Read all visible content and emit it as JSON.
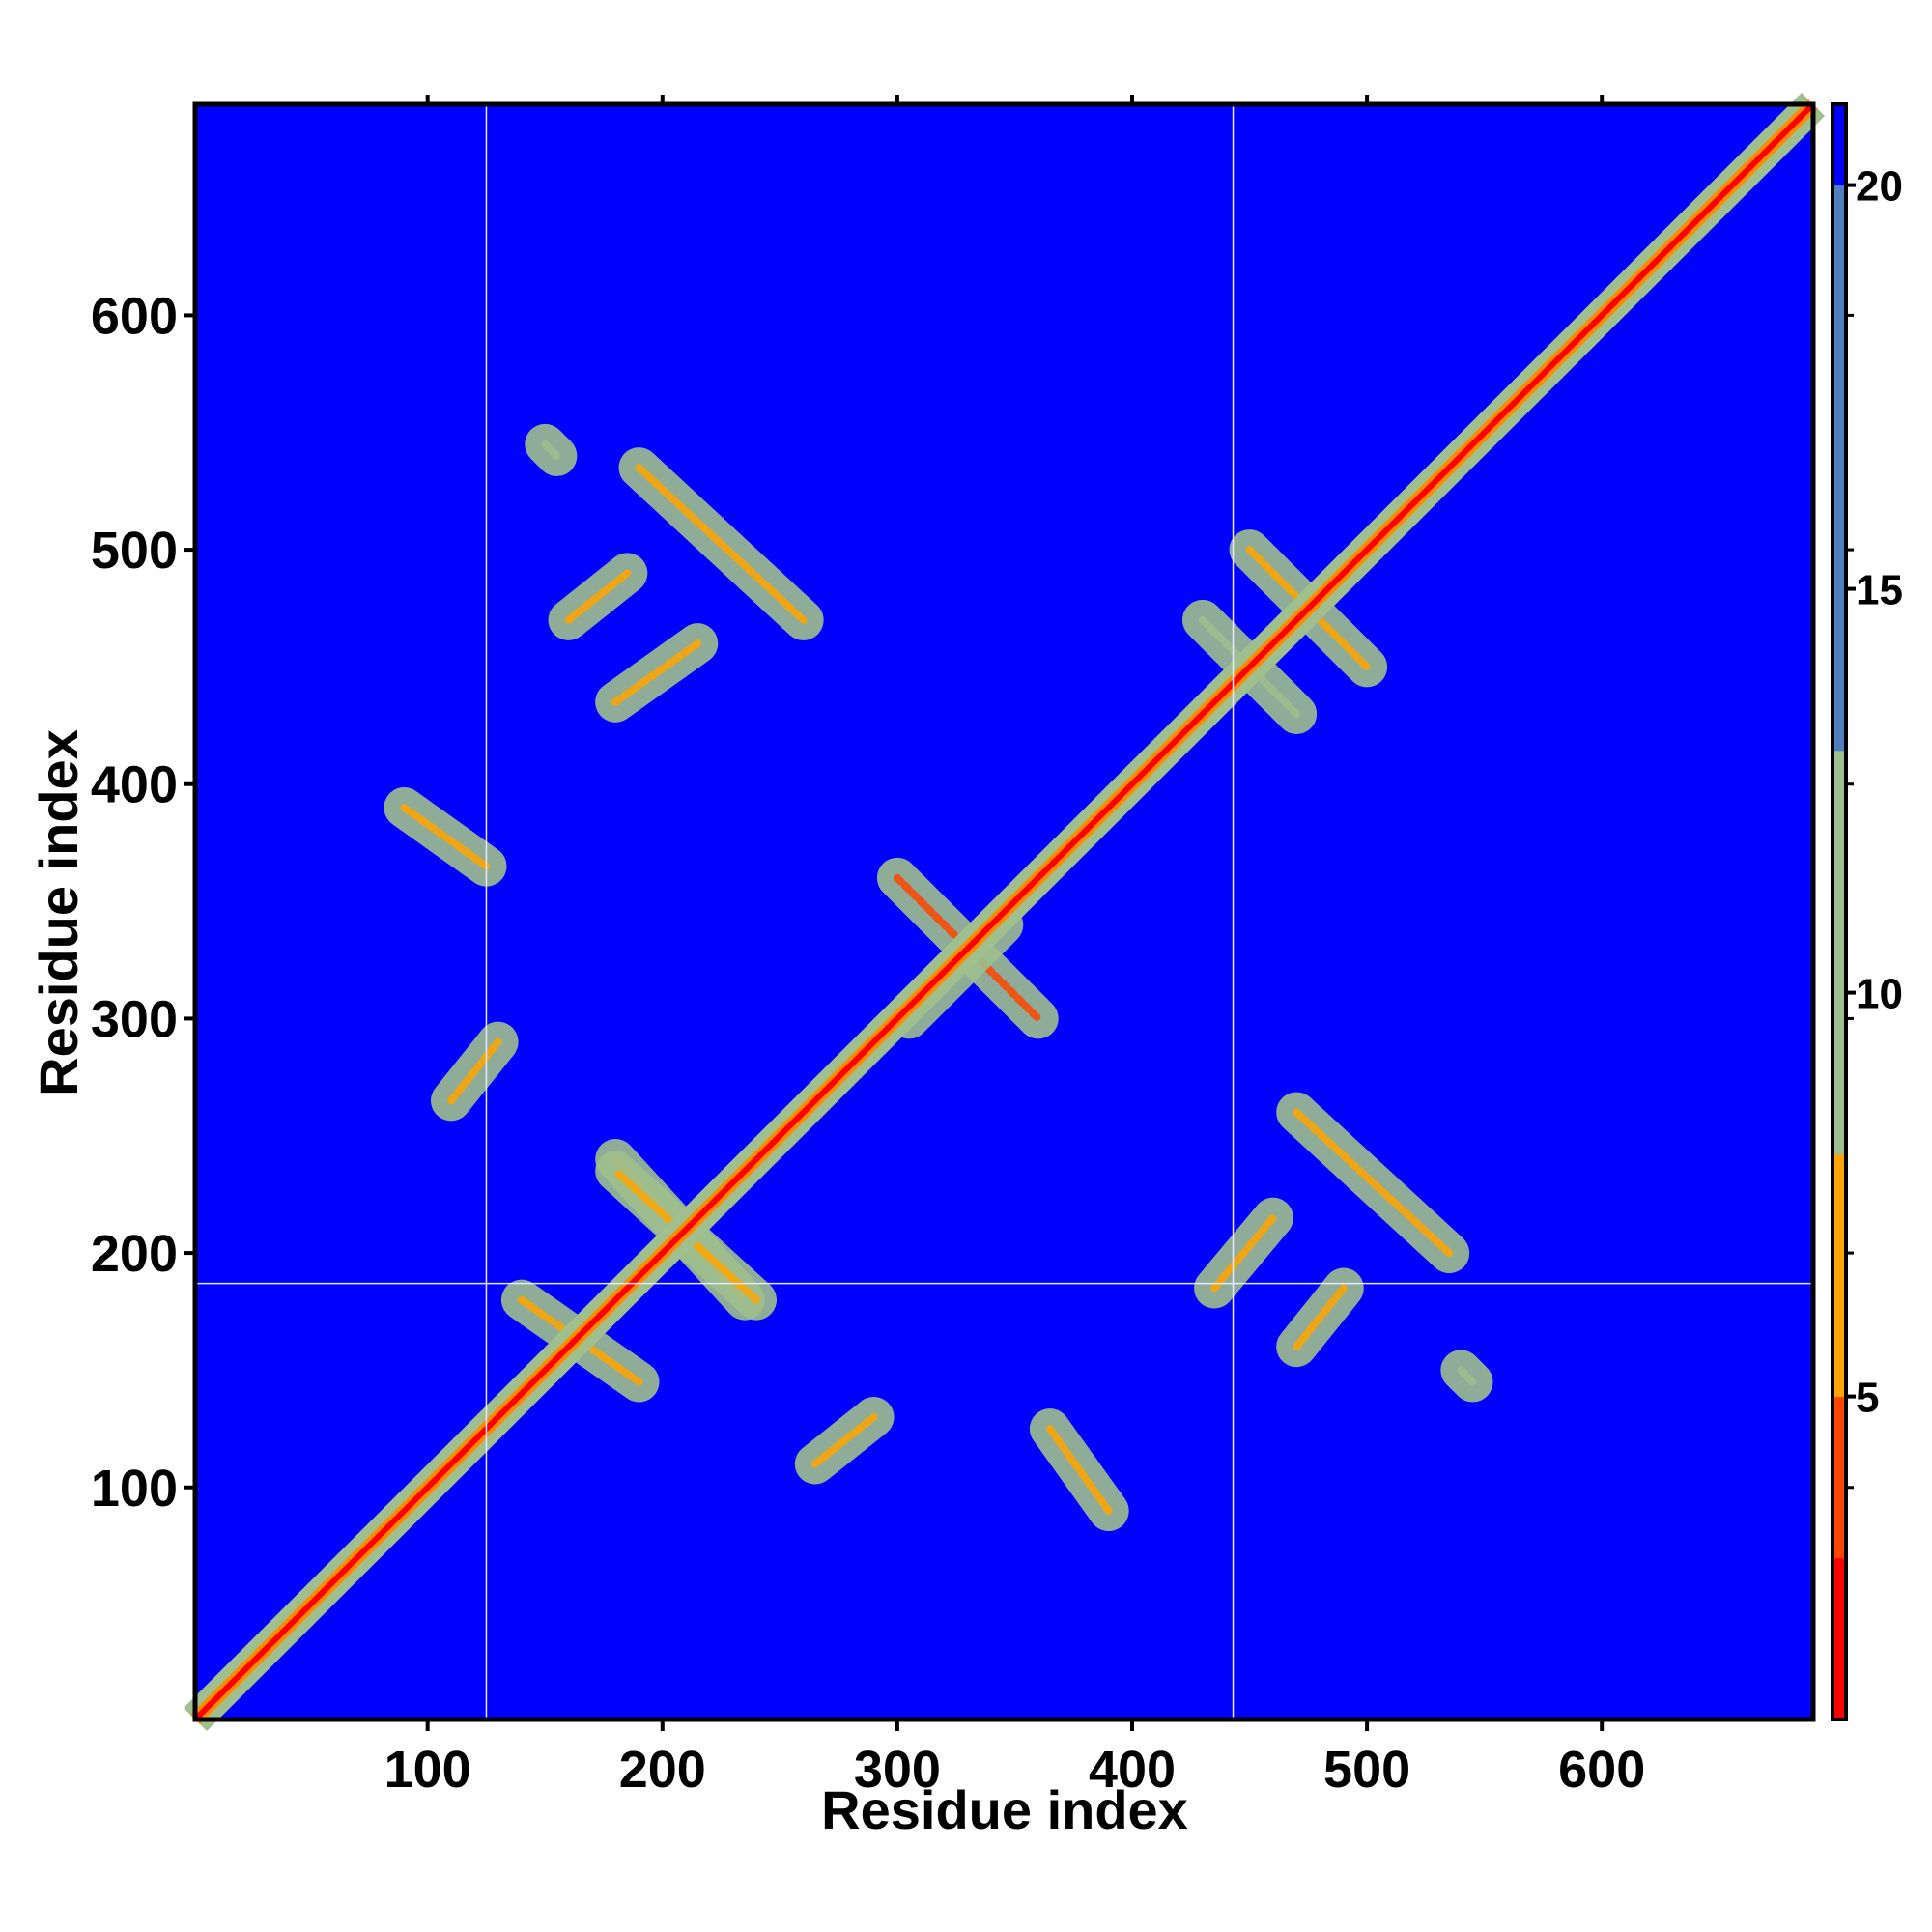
{
  "chart_data": {
    "type": "heatmap",
    "title": "",
    "xlabel": "Residue index",
    "ylabel": "Residue index",
    "xlim": [
      1,
      690
    ],
    "ylim": [
      1,
      690
    ],
    "x_ticks": [
      100,
      200,
      300,
      400,
      500,
      600
    ],
    "y_ticks": [
      100,
      200,
      300,
      400,
      500,
      600
    ],
    "colorbar": {
      "ticks": [
        5,
        10,
        15,
        20
      ],
      "range": [
        1,
        21
      ],
      "colors": {
        "low": "#ff0000",
        "mid": "#ffa500",
        "contact": "#9fbf8f",
        "high": "#4f7fbf",
        "background": "#0000ff"
      }
    },
    "background_value": 21,
    "divider_lines": {
      "x": [
        125,
        443
      ],
      "y": [
        187
      ]
    },
    "diagonal": {
      "from": 1,
      "to": 690,
      "core_value": 2,
      "halo_value": 11
    },
    "contact_regions": [
      {
        "x1": 90,
        "y1": 390,
        "x2": 125,
        "y2": 365,
        "value": 7
      },
      {
        "x1": 365,
        "y1": 125,
        "x2": 390,
        "y2": 90,
        "value": 7
      },
      {
        "x1": 110,
        "y1": 265,
        "x2": 130,
        "y2": 290,
        "value": 8
      },
      {
        "x1": 265,
        "y1": 110,
        "x2": 290,
        "y2": 130,
        "value": 8
      },
      {
        "x1": 150,
        "y1": 545,
        "x2": 155,
        "y2": 540,
        "value": 11
      },
      {
        "x1": 540,
        "y1": 150,
        "x2": 545,
        "y2": 145,
        "value": 11
      },
      {
        "x1": 190,
        "y1": 535,
        "x2": 260,
        "y2": 470,
        "value": 6
      },
      {
        "x1": 160,
        "y1": 470,
        "x2": 185,
        "y2": 490,
        "value": 7
      },
      {
        "x1": 180,
        "y1": 435,
        "x2": 215,
        "y2": 460,
        "value": 7
      },
      {
        "x1": 470,
        "y1": 260,
        "x2": 535,
        "y2": 200,
        "value": 6
      },
      {
        "x1": 470,
        "y1": 160,
        "x2": 490,
        "y2": 185,
        "value": 7
      },
      {
        "x1": 435,
        "y1": 185,
        "x2": 460,
        "y2": 215,
        "value": 7
      },
      {
        "x1": 180,
        "y1": 240,
        "x2": 235,
        "y2": 180,
        "value": 8
      },
      {
        "x1": 240,
        "y1": 180,
        "x2": 180,
        "y2": 235,
        "value": 8
      },
      {
        "x1": 140,
        "y1": 180,
        "x2": 190,
        "y2": 145,
        "value": 7
      },
      {
        "x1": 300,
        "y1": 360,
        "x2": 360,
        "y2": 300,
        "value": 5
      },
      {
        "x1": 305,
        "y1": 300,
        "x2": 345,
        "y2": 340,
        "value": 7
      },
      {
        "x1": 450,
        "y1": 500,
        "x2": 500,
        "y2": 450,
        "value": 7
      },
      {
        "x1": 430,
        "y1": 470,
        "x2": 470,
        "y2": 430,
        "value": 9
      }
    ]
  }
}
